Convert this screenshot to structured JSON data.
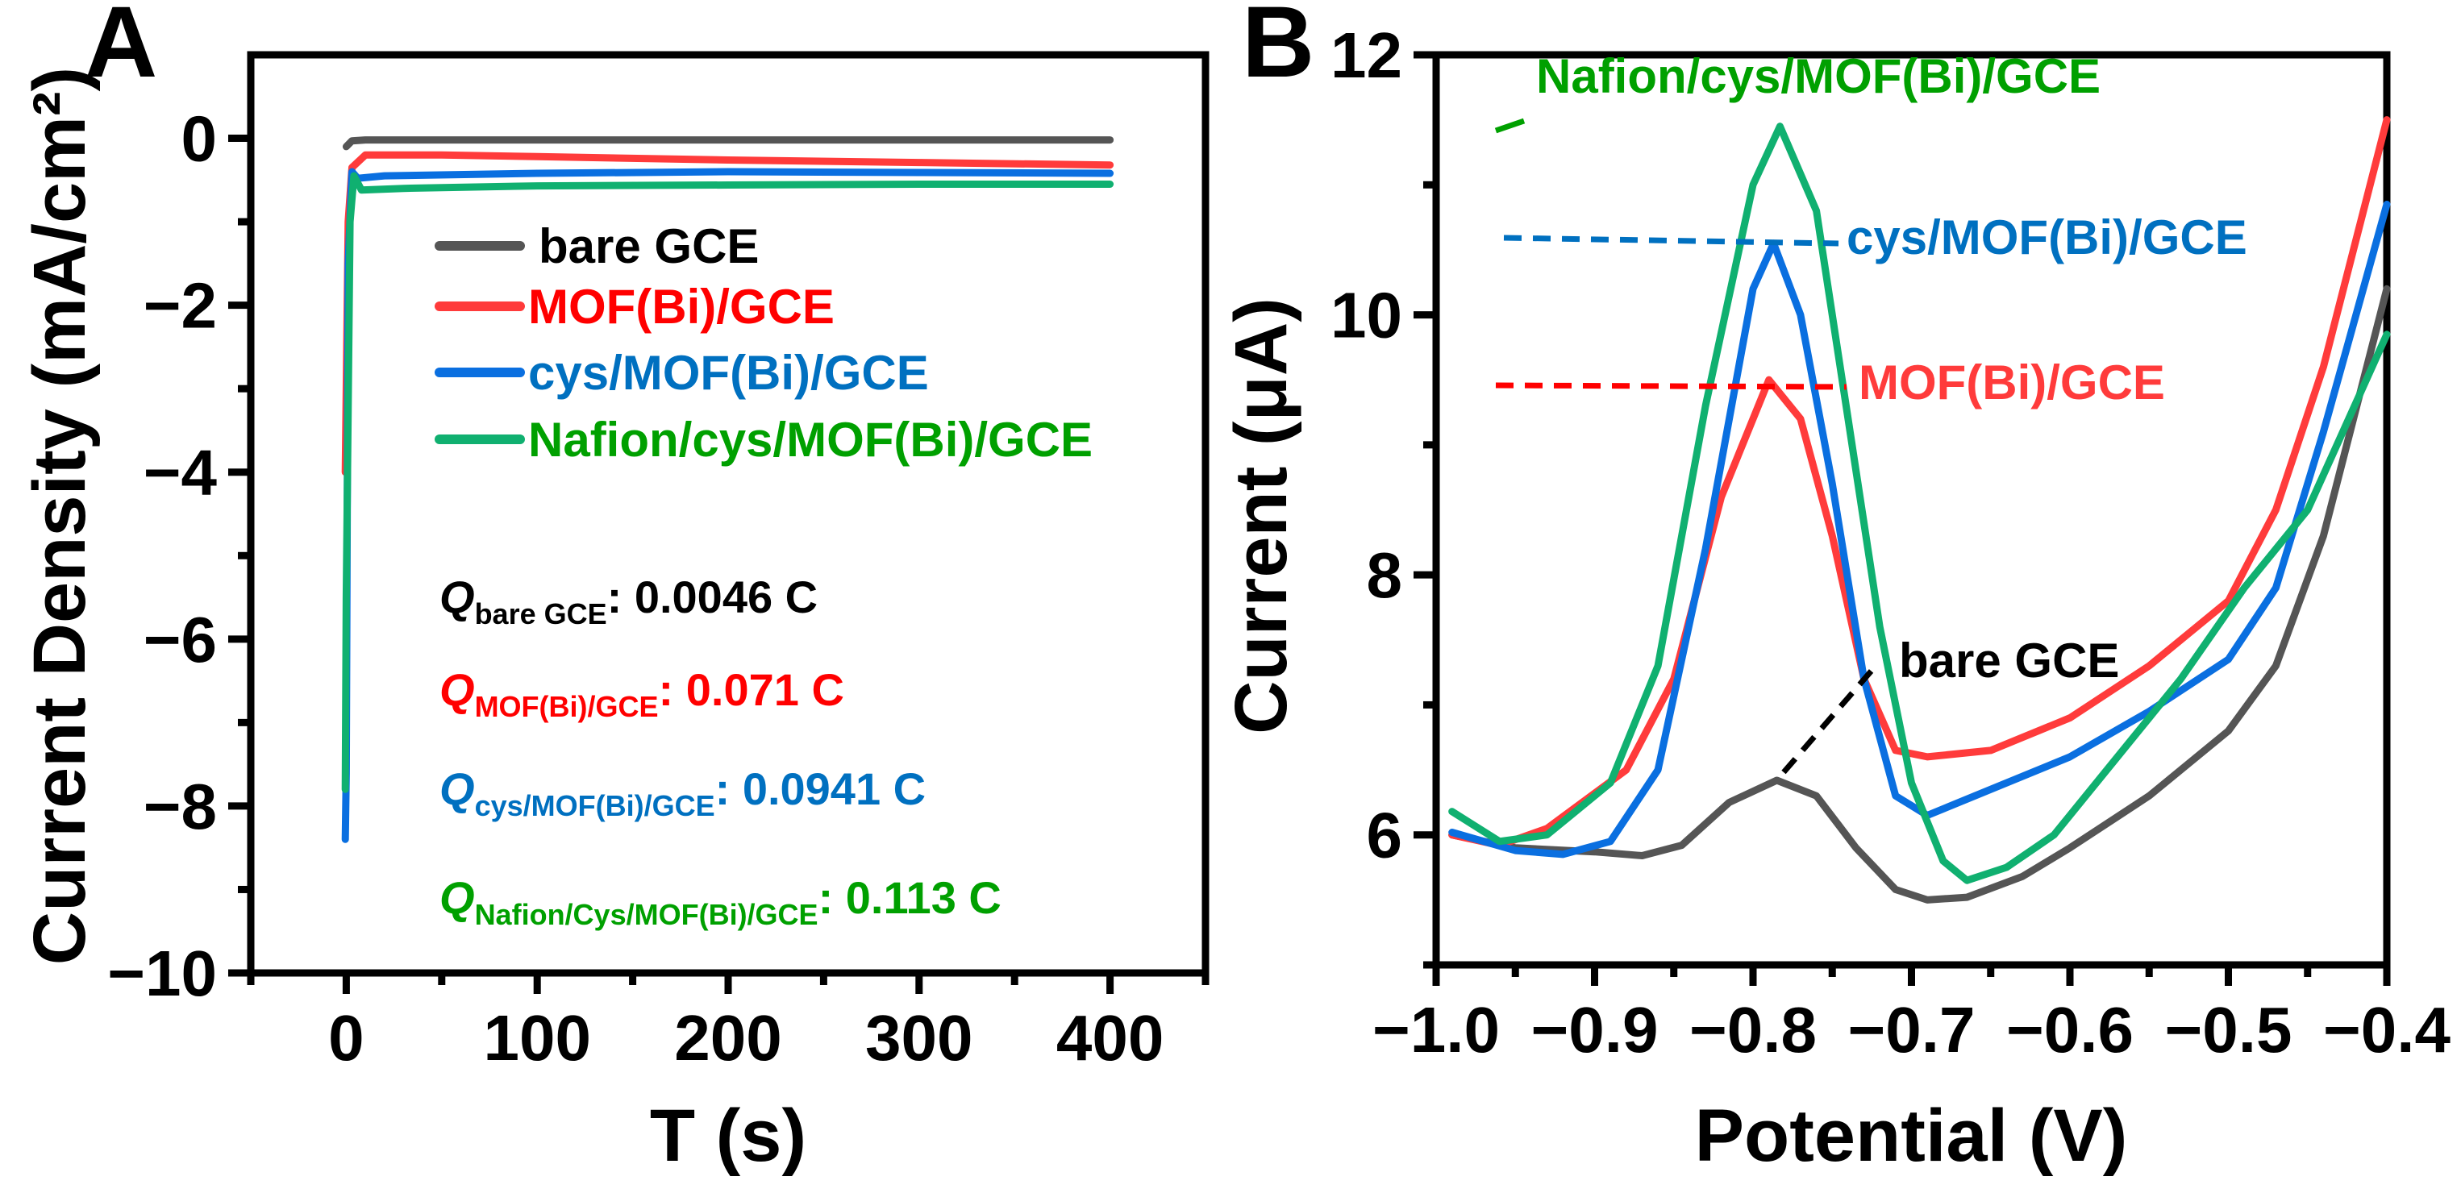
{
  "colors": {
    "bare": "#555555",
    "mof": "#ff3b3b",
    "cys": "#0a6fe0",
    "nafion": "#10b070",
    "text_red": "#ff0000",
    "text_blue": "#0070c0",
    "text_green": "#00a000"
  },
  "chart_data": [
    {
      "panel": "A",
      "type": "line",
      "xlabel": "T (s)",
      "ylabel": "Current Density (mA/cm²)",
      "xlim": [
        -50,
        450
      ],
      "ylim": [
        -10,
        1
      ],
      "xticks": [
        "0",
        "100",
        "200",
        "300",
        "400"
      ],
      "yticks": [
        "0",
        "−2",
        "−4",
        "−6",
        "−8",
        "−10"
      ],
      "legend": [
        "bare GCE",
        "MOF(Bi)/GCE",
        "cys/MOF(Bi)/GCE",
        "Nafion/cys/MOF(Bi)/GCE"
      ],
      "legend_placement": "center-right",
      "series": [
        {
          "name": "bare GCE",
          "points": [
            [
              0,
              -0.1
            ],
            [
              3,
              -0.03
            ],
            [
              10,
              -0.02
            ],
            [
              400,
              -0.02
            ]
          ]
        },
        {
          "name": "MOF(Bi)/GCE",
          "points": [
            [
              -0.5,
              -4.0
            ],
            [
              0,
              -3.0
            ],
            [
              1,
              -1.0
            ],
            [
              3,
              -0.35
            ],
            [
              10,
              -0.2
            ],
            [
              50,
              -0.2
            ],
            [
              100,
              -0.22
            ],
            [
              200,
              -0.26
            ],
            [
              300,
              -0.29
            ],
            [
              400,
              -0.32
            ]
          ]
        },
        {
          "name": "cys/MOF(Bi)/GCE",
          "points": [
            [
              -0.5,
              -8.4
            ],
            [
              0,
              -7.6
            ],
            [
              1,
              -1.5
            ],
            [
              3,
              -0.4
            ],
            [
              6,
              -0.48
            ],
            [
              20,
              -0.45
            ],
            [
              100,
              -0.42
            ],
            [
              200,
              -0.4
            ],
            [
              300,
              -0.41
            ],
            [
              400,
              -0.42
            ]
          ]
        },
        {
          "name": "Nafion/cys/MOF(Bi)/GCE",
          "points": [
            [
              -0.5,
              -7.8
            ],
            [
              0,
              -5.5
            ],
            [
              2,
              -1.0
            ],
            [
              4,
              -0.45
            ],
            [
              8,
              -0.62
            ],
            [
              30,
              -0.6
            ],
            [
              100,
              -0.57
            ],
            [
              200,
              -0.56
            ],
            [
              300,
              -0.55
            ],
            [
              400,
              -0.55
            ]
          ]
        }
      ],
      "annotations": [
        {
          "q": "Q",
          "sub": "bare GCE",
          "value": ": 0.0046 C"
        },
        {
          "q": "Q",
          "sub": "MOF(Bi)/GCE",
          "value": ": 0.071 C"
        },
        {
          "q": "Q",
          "sub": "cys/MOF(Bi)/GCE",
          "value": ": 0.0941 C"
        },
        {
          "q": "Q",
          "sub": "Nafion/Cys/MOF(Bi)/GCE",
          "value": ": 0.113 C"
        }
      ]
    },
    {
      "panel": "B",
      "type": "line",
      "xlabel": "Potential (V)",
      "ylabel": "Current (μA)",
      "xlim": [
        -1.0,
        -0.4
      ],
      "ylim": [
        5,
        12
      ],
      "xticks": [
        "−1.0",
        "−0.9",
        "−0.8",
        "−0.7",
        "−0.6",
        "−0.5",
        "−0.4"
      ],
      "yticks": [
        "6",
        "8",
        "10",
        "12"
      ],
      "series": [
        {
          "name": "bare GCE",
          "points": [
            [
              -0.99,
              6.0
            ],
            [
              -0.95,
              5.9
            ],
            [
              -0.9,
              5.87
            ],
            [
              -0.87,
              5.84
            ],
            [
              -0.845,
              5.92
            ],
            [
              -0.815,
              6.25
            ],
            [
              -0.785,
              6.42
            ],
            [
              -0.76,
              6.3
            ],
            [
              -0.735,
              5.9
            ],
            [
              -0.71,
              5.58
            ],
            [
              -0.69,
              5.5
            ],
            [
              -0.665,
              5.52
            ],
            [
              -0.63,
              5.68
            ],
            [
              -0.6,
              5.9
            ],
            [
              -0.55,
              6.3
            ],
            [
              -0.5,
              6.8
            ],
            [
              -0.47,
              7.3
            ],
            [
              -0.44,
              8.3
            ],
            [
              -0.4,
              10.2
            ]
          ]
        },
        {
          "name": "MOF(Bi)/GCE",
          "points": [
            [
              -0.99,
              6.0
            ],
            [
              -0.96,
              5.92
            ],
            [
              -0.93,
              6.05
            ],
            [
              -0.88,
              6.5
            ],
            [
              -0.85,
              7.2
            ],
            [
              -0.82,
              8.6
            ],
            [
              -0.79,
              9.5
            ],
            [
              -0.77,
              9.2
            ],
            [
              -0.75,
              8.3
            ],
            [
              -0.73,
              7.2
            ],
            [
              -0.71,
              6.65
            ],
            [
              -0.69,
              6.6
            ],
            [
              -0.65,
              6.65
            ],
            [
              -0.6,
              6.9
            ],
            [
              -0.55,
              7.3
            ],
            [
              -0.5,
              7.8
            ],
            [
              -0.47,
              8.5
            ],
            [
              -0.44,
              9.6
            ],
            [
              -0.4,
              11.5
            ]
          ]
        },
        {
          "name": "cys/MOF(Bi)/GCE",
          "points": [
            [
              -0.99,
              6.02
            ],
            [
              -0.95,
              5.88
            ],
            [
              -0.92,
              5.85
            ],
            [
              -0.89,
              5.95
            ],
            [
              -0.86,
              6.5
            ],
            [
              -0.83,
              8.2
            ],
            [
              -0.8,
              10.2
            ],
            [
              -0.787,
              10.55
            ],
            [
              -0.77,
              10.0
            ],
            [
              -0.75,
              8.7
            ],
            [
              -0.73,
              7.2
            ],
            [
              -0.71,
              6.3
            ],
            [
              -0.69,
              6.15
            ],
            [
              -0.66,
              6.3
            ],
            [
              -0.6,
              6.6
            ],
            [
              -0.55,
              6.95
            ],
            [
              -0.5,
              7.35
            ],
            [
              -0.47,
              7.9
            ],
            [
              -0.44,
              9.1
            ],
            [
              -0.4,
              10.85
            ]
          ]
        },
        {
          "name": "Nafion/cys/MOF(Bi)/GCE",
          "points": [
            [
              -0.99,
              6.18
            ],
            [
              -0.96,
              5.95
            ],
            [
              -0.93,
              6.0
            ],
            [
              -0.89,
              6.4
            ],
            [
              -0.86,
              7.3
            ],
            [
              -0.83,
              9.3
            ],
            [
              -0.8,
              11.0
            ],
            [
              -0.783,
              11.45
            ],
            [
              -0.76,
              10.8
            ],
            [
              -0.74,
              9.2
            ],
            [
              -0.72,
              7.6
            ],
            [
              -0.7,
              6.4
            ],
            [
              -0.68,
              5.8
            ],
            [
              -0.665,
              5.65
            ],
            [
              -0.64,
              5.75
            ],
            [
              -0.61,
              6.0
            ],
            [
              -0.57,
              6.6
            ],
            [
              -0.53,
              7.2
            ],
            [
              -0.49,
              7.9
            ],
            [
              -0.45,
              8.5
            ],
            [
              -0.4,
              9.85
            ]
          ]
        }
      ],
      "labels": [
        "Nafion/cys/MOF(Bi)/GCE",
        "cys/MOF(Bi)/GCE",
        "MOF(Bi)/GCE",
        "bare GCE"
      ]
    }
  ]
}
